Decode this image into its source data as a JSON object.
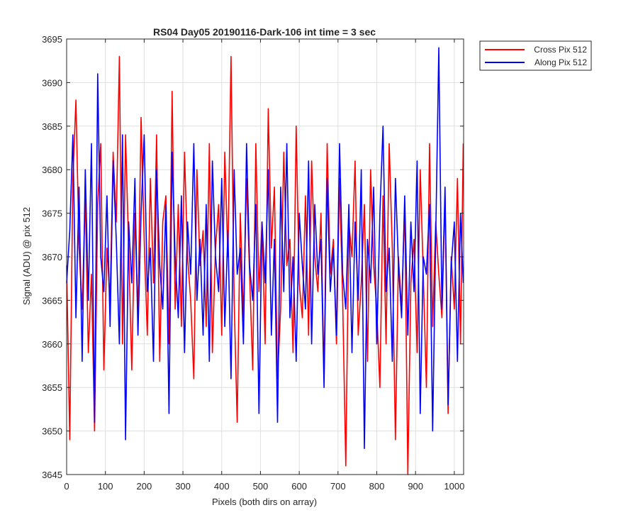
{
  "chart_data": {
    "type": "line",
    "title": "RS04 Day05 20190116-Dark-106 int time = 3 sec",
    "xlabel": "Pixels (both dirs on array)",
    "ylabel": "Signal (ADU) @ pix 512",
    "xlim": [
      0,
      1024
    ],
    "ylim": [
      3645,
      3695
    ],
    "xticks": [
      0,
      100,
      200,
      300,
      400,
      500,
      600,
      700,
      800,
      900,
      1000
    ],
    "yticks": [
      3645,
      3650,
      3655,
      3660,
      3665,
      3670,
      3675,
      3680,
      3685,
      3690,
      3695
    ],
    "grid": true,
    "legend_position": "outside top-right",
    "series": [
      {
        "name": "Cross Pix 512",
        "color": "#ff0000",
        "x": [
          0,
          8,
          16,
          24,
          32,
          40,
          48,
          56,
          64,
          72,
          80,
          88,
          96,
          104,
          112,
          120,
          128,
          136,
          144,
          152,
          160,
          168,
          176,
          184,
          192,
          200,
          208,
          216,
          224,
          232,
          240,
          248,
          256,
          264,
          272,
          280,
          288,
          296,
          304,
          312,
          320,
          328,
          336,
          344,
          352,
          360,
          368,
          376,
          384,
          392,
          400,
          408,
          416,
          424,
          432,
          440,
          448,
          456,
          464,
          472,
          480,
          488,
          496,
          504,
          512,
          520,
          528,
          536,
          544,
          552,
          560,
          568,
          576,
          584,
          592,
          600,
          608,
          616,
          624,
          632,
          640,
          648,
          656,
          664,
          672,
          680,
          688,
          696,
          704,
          712,
          720,
          728,
          736,
          744,
          752,
          760,
          768,
          776,
          784,
          792,
          800,
          808,
          816,
          824,
          832,
          840,
          848,
          856,
          864,
          872,
          880,
          888,
          896,
          904,
          912,
          920,
          928,
          936,
          944,
          952,
          960,
          968,
          976,
          984,
          992,
          1000,
          1008,
          1016,
          1023
        ],
        "values": [
          3669,
          3649,
          3679,
          3688,
          3671,
          3664,
          3677,
          3659,
          3668,
          3650,
          3676,
          3683,
          3657,
          3671,
          3665,
          3682,
          3674,
          3693,
          3660,
          3684,
          3671,
          3657,
          3675,
          3663,
          3686,
          3672,
          3661,
          3679,
          3667,
          3684,
          3658,
          3674,
          3677,
          3660,
          3689,
          3664,
          3676,
          3662,
          3682,
          3670,
          3665,
          3656,
          3680,
          3669,
          3673,
          3662,
          3683,
          3659,
          3671,
          3676,
          3661,
          3682,
          3670,
          3693,
          3665,
          3651,
          3675,
          3663,
          3679,
          3668,
          3657,
          3683,
          3666,
          3674,
          3660,
          3687,
          3671,
          3678,
          3656,
          3664,
          3682,
          3669,
          3672,
          3659,
          3685,
          3667,
          3663,
          3677,
          3661,
          3681,
          3670,
          3666,
          3675,
          3656,
          3683,
          3668,
          3672,
          3660,
          3679,
          3665,
          3646,
          3674,
          3670,
          3681,
          3661,
          3667,
          3676,
          3658,
          3680,
          3669,
          3664,
          3655,
          3677,
          3660,
          3683,
          3671,
          3649,
          3670,
          3664,
          3676,
          3645,
          3667,
          3672,
          3659,
          3680,
          3668,
          3655,
          3683,
          3662,
          3674,
          3668,
          3663,
          3677,
          3652,
          3670,
          3664,
          3679,
          3660,
          3683
        ]
      },
      {
        "name": "Along Pix 512",
        "color": "#0000ff",
        "x": [
          0,
          8,
          16,
          24,
          32,
          40,
          48,
          56,
          64,
          72,
          80,
          88,
          96,
          104,
          112,
          120,
          128,
          136,
          144,
          152,
          160,
          168,
          176,
          184,
          192,
          200,
          208,
          216,
          224,
          232,
          240,
          248,
          256,
          264,
          272,
          280,
          288,
          296,
          304,
          312,
          320,
          328,
          336,
          344,
          352,
          360,
          368,
          376,
          384,
          392,
          400,
          408,
          416,
          424,
          432,
          440,
          448,
          456,
          464,
          472,
          480,
          488,
          496,
          504,
          512,
          520,
          528,
          536,
          544,
          552,
          560,
          568,
          576,
          584,
          592,
          600,
          608,
          616,
          624,
          632,
          640,
          648,
          656,
          664,
          672,
          680,
          688,
          696,
          704,
          712,
          720,
          728,
          736,
          744,
          752,
          760,
          768,
          776,
          784,
          792,
          800,
          808,
          816,
          824,
          832,
          840,
          848,
          856,
          864,
          872,
          880,
          888,
          896,
          904,
          912,
          920,
          928,
          936,
          944,
          952,
          960,
          968,
          976,
          984,
          992,
          1000,
          1008,
          1016,
          1023
        ],
        "values": [
          3667,
          3673,
          3684,
          3663,
          3678,
          3658,
          3680,
          3665,
          3683,
          3651,
          3691,
          3670,
          3666,
          3677,
          3662,
          3681,
          3672,
          3660,
          3684,
          3649,
          3674,
          3667,
          3679,
          3661,
          3675,
          3684,
          3666,
          3671,
          3658,
          3680,
          3669,
          3664,
          3676,
          3652,
          3682,
          3670,
          3663,
          3677,
          3659,
          3674,
          3668,
          3683,
          3665,
          3672,
          3661,
          3676,
          3658,
          3681,
          3670,
          3666,
          3679,
          3662,
          3673,
          3656,
          3680,
          3668,
          3671,
          3660,
          3683,
          3669,
          3665,
          3676,
          3652,
          3674,
          3667,
          3680,
          3661,
          3672,
          3651,
          3678,
          3666,
          3683,
          3663,
          3670,
          3658,
          3675,
          3669,
          3664,
          3681,
          3660,
          3676,
          3668,
          3672,
          3655,
          3679,
          3666,
          3671,
          3661,
          3683,
          3668,
          3664,
          3676,
          3659,
          3674,
          3665,
          3680,
          3648,
          3672,
          3667,
          3678,
          3660,
          3675,
          3685,
          3666,
          3671,
          3658,
          3679,
          3669,
          3663,
          3677,
          3661,
          3674,
          3666,
          3681,
          3652,
          3670,
          3668,
          3676,
          3650,
          3672,
          3694,
          3664,
          3678,
          3653,
          3669,
          3674,
          3658,
          3675,
          3667
        ]
      }
    ]
  }
}
